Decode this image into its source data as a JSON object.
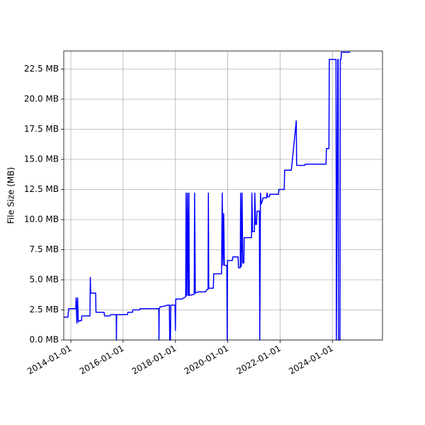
{
  "chart_data": {
    "type": "line",
    "ylabel": "File Size (MB)",
    "color": "#0000ff",
    "grid": true,
    "xlim": [
      "2013-09-24",
      "2025-12-01"
    ],
    "ylim": [
      0,
      24
    ],
    "xticks": [
      "2014-01-01",
      "2016-01-01",
      "2018-01-01",
      "2020-01-01",
      "2022-01-01",
      "2024-01-01"
    ],
    "yticks": [
      {
        "value": 0,
        "label": "0.0 MB"
      },
      {
        "value": 2.5,
        "label": "2.5 MB"
      },
      {
        "value": 5,
        "label": "5.0 MB"
      },
      {
        "value": 7.5,
        "label": "7.5 MB"
      },
      {
        "value": 10,
        "label": "10.0 MB"
      },
      {
        "value": 12.5,
        "label": "12.5 MB"
      },
      {
        "value": 15,
        "label": "15.0 MB"
      },
      {
        "value": 17.5,
        "label": "17.5 MB"
      },
      {
        "value": 20,
        "label": "20.0 MB"
      },
      {
        "value": 22.5,
        "label": "22.5 MB"
      }
    ],
    "x": [
      "2013-09-24",
      "2013-11-22",
      "2013-12-02",
      "2014-03-11",
      "2014-03-16",
      "2014-03-26",
      "2014-04-05",
      "2014-04-15",
      "2014-04-30",
      "2014-05-30",
      "2014-06-03",
      "2014-09-25",
      "2014-09-30",
      "2014-10-05",
      "2014-12-14",
      "2014-12-18",
      "2015-04-11",
      "2015-04-16",
      "2015-06-30",
      "2015-07-09",
      "2015-09-27",
      "2015-09-30",
      "2015-10-03",
      "2016-03-02",
      "2016-03-07",
      "2016-05-11",
      "2016-05-16",
      "2016-08-18",
      "2016-08-23",
      "2017-05-13",
      "2017-05-16",
      "2017-05-19",
      "2017-06-01",
      "2017-08-30",
      "2017-09-09",
      "2017-10-08",
      "2017-10-13",
      "2017-10-23",
      "2017-10-28",
      "2017-12-26",
      "2017-12-31",
      "2018-01-05",
      "2018-03-31",
      "2018-05-24",
      "2018-05-29",
      "2018-06-08",
      "2018-06-18",
      "2018-06-28",
      "2018-07-08",
      "2018-07-13",
      "2018-09-20",
      "2018-09-25",
      "2018-10-05",
      "2018-11-18",
      "2019-02-25",
      "2019-03-17",
      "2019-04-01",
      "2019-04-06",
      "2019-04-11",
      "2019-06-14",
      "2019-06-19",
      "2019-10-06",
      "2019-10-16",
      "2019-10-26",
      "2019-11-05",
      "2019-11-15",
      "2019-12-19",
      "2019-12-24",
      "2019-12-29",
      "2020-03-06",
      "2020-03-11",
      "2020-05-25",
      "2020-05-30",
      "2020-06-24",
      "2020-06-29",
      "2020-07-09",
      "2020-07-19",
      "2020-07-29",
      "2020-08-13",
      "2020-08-18",
      "2020-11-28",
      "2020-12-03",
      "2020-12-13",
      "2021-01-08",
      "2021-01-13",
      "2021-01-23",
      "2021-02-07",
      "2021-02-12",
      "2021-03-18",
      "2021-03-23",
      "2021-04-02",
      "2021-04-12",
      "2021-04-27",
      "2021-05-07",
      "2021-06-26",
      "2021-07-01",
      "2021-07-11",
      "2021-08-05",
      "2021-08-10",
      "2021-12-10",
      "2021-12-15",
      "2022-02-28",
      "2022-03-05",
      "2022-06-07",
      "2022-08-15",
      "2022-08-20",
      "2022-12-12",
      "2022-12-17",
      "2023-10-05",
      "2023-10-10",
      "2023-11-14",
      "2023-11-19",
      "2024-02-21",
      "2024-02-26",
      "2024-03-17",
      "2024-03-22",
      "2024-03-27",
      "2024-04-16",
      "2024-04-21",
      "2024-05-01",
      "2024-05-06",
      "2024-09-06"
    ],
    "values": [
      1.9,
      1.9,
      2.6,
      2.6,
      3.5,
      1.4,
      3.5,
      1.5,
      1.6,
      1.6,
      2.0,
      2.0,
      5.2,
      3.9,
      3.9,
      2.3,
      2.3,
      2.0,
      2.0,
      2.1,
      2.1,
      0,
      2.1,
      2.1,
      2.3,
      2.3,
      2.5,
      2.5,
      2.6,
      2.6,
      0,
      2.6,
      2.75,
      2.85,
      2.9,
      2.9,
      0,
      0,
      2.9,
      2.9,
      0.8,
      3.4,
      3.4,
      3.6,
      12.2,
      3.7,
      12.2,
      3.7,
      12.2,
      3.7,
      3.8,
      12.2,
      3.9,
      4.0,
      4.0,
      4.2,
      4.2,
      12.2,
      4.3,
      4.3,
      5.5,
      5.5,
      12.2,
      6.2,
      10.5,
      6.2,
      6.2,
      0,
      6.6,
      6.6,
      6.9,
      6.9,
      6.0,
      6.0,
      12.2,
      6.1,
      12.2,
      6.4,
      6.4,
      8.5,
      8.5,
      12.2,
      9.0,
      9.0,
      12.2,
      9.6,
      9.6,
      10.7,
      10.7,
      0,
      12.2,
      11.3,
      11.5,
      11.8,
      11.8,
      12.2,
      11.9,
      11.9,
      12.1,
      12.1,
      12.5,
      12.5,
      14.1,
      14.1,
      18.2,
      14.5,
      14.5,
      14.6,
      14.6,
      15.9,
      15.9,
      23.3,
      23.3,
      0,
      23.3,
      23.3,
      0,
      0,
      23.3,
      23.3,
      23.9,
      23.9
    ]
  }
}
